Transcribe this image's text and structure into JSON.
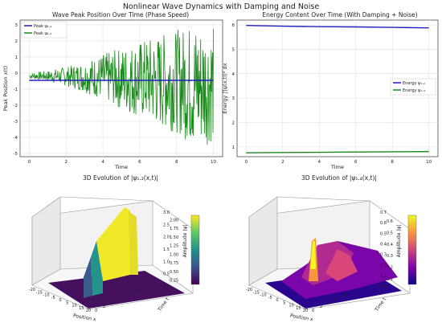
{
  "figure_title": "Nonlinear Wave Dynamics with Damping and Noise",
  "chart_data": [
    {
      "type": "line",
      "title": "Wave Peak Position Over Time (Phase Speed)",
      "xlabel": "Time",
      "ylabel": "Peak Position x(t)",
      "xlim": [
        -0.5,
        10.5
      ],
      "ylim": [
        -5.2,
        3.3
      ],
      "xticks": [
        "0",
        "2",
        "4",
        "6",
        "8",
        "10"
      ],
      "yticks": [
        "-5",
        "-4",
        "-3",
        "-2",
        "-1",
        "0",
        "1",
        "2",
        "3"
      ],
      "grid": true,
      "legend": "top-left",
      "series": [
        {
          "name": "Peak ψ₁.₂",
          "color": "#1f1fbf",
          "note_values": "approximately constant",
          "x": [
            0,
            10
          ],
          "y": [
            -0.45,
            -0.45
          ]
        },
        {
          "name": "Peak ψ₁.₄",
          "color": "#1a8a1a",
          "note_values": "noise envelope growing over time",
          "x": [
            0,
            1,
            2,
            3,
            4,
            5,
            6,
            7,
            8,
            9,
            10
          ],
          "y_upper": [
            0.0,
            0.15,
            0.4,
            0.7,
            1.2,
            1.6,
            2.0,
            2.4,
            2.7,
            3.2,
            3.0
          ],
          "y_lower": [
            -0.35,
            -0.5,
            -0.8,
            -1.2,
            -1.7,
            -2.3,
            -2.8,
            -3.4,
            -3.7,
            -4.8,
            -4.3
          ]
        }
      ]
    },
    {
      "type": "line",
      "title": "Energy Content Over Time (With Damping + Noise)",
      "xlabel": "Time",
      "ylabel": "Energy ∫|ψ(x,t)|² dx",
      "xlim": [
        -0.5,
        10.5
      ],
      "ylim": [
        0.6,
        6.2
      ],
      "xticks": [
        "0",
        "2",
        "4",
        "6",
        "8",
        "10"
      ],
      "yticks": [
        "1",
        "2",
        "3",
        "4",
        "5",
        "6"
      ],
      "grid": true,
      "legend": "center-right",
      "series": [
        {
          "name": "Energy ψ₁.₂",
          "color": "#1f1fbf",
          "x": [
            0,
            2,
            4,
            6,
            8,
            10
          ],
          "y": [
            5.98,
            5.95,
            5.93,
            5.92,
            5.9,
            5.88
          ]
        },
        {
          "name": "Energy ψ₁.₄",
          "color": "#1a8a1a",
          "x": [
            0,
            2,
            4,
            6,
            8,
            10
          ],
          "y": [
            0.76,
            0.77,
            0.78,
            0.79,
            0.8,
            0.81
          ]
        }
      ]
    },
    {
      "type": "surface3d",
      "title": "3D Evolution of |ψ₁.₂(x,t)|",
      "xlabel": "Position x",
      "ylabel": "Time t",
      "zlabel": "Amplitude |ψ|",
      "xticks": [
        "-20",
        "-15",
        "-10",
        "-5",
        "0",
        "5",
        "10",
        "15",
        "20"
      ],
      "yticks": [
        "0",
        "2",
        "4",
        "6",
        "8",
        "10"
      ],
      "zticks": [
        "0.0",
        "0.5",
        "1.0",
        "1.5",
        "2.0",
        "2.5",
        "3.0"
      ],
      "colorbar_ticks": [
        "0.25",
        "0.50",
        "0.75",
        "1.00",
        "1.25",
        "1.50",
        "1.75",
        "2.00"
      ],
      "colormap": "viridis",
      "peak_amplitude": 2.05
    },
    {
      "type": "surface3d",
      "title": "3D Evolution of |ψ₁.₄(x,t)|",
      "xlabel": "Position x",
      "ylabel": "Time t",
      "zlabel": "Amplitude |ψ|",
      "xticks": [
        "-20",
        "-15",
        "-10",
        "-5",
        "0",
        "5",
        "10",
        "15",
        "20"
      ],
      "yticks": [
        "0",
        "2",
        "4",
        "6",
        "8",
        "10"
      ],
      "zticks": [
        "0.0",
        "0.1",
        "0.2",
        "0.3",
        "0.4",
        "0.5",
        "0.6",
        "0.7"
      ],
      "colorbar_ticks": [
        "0.1",
        "0.2",
        "0.3",
        "0.4",
        "0.5",
        "0.6"
      ],
      "colormap": "plasma",
      "peak_amplitude": 0.65
    }
  ]
}
